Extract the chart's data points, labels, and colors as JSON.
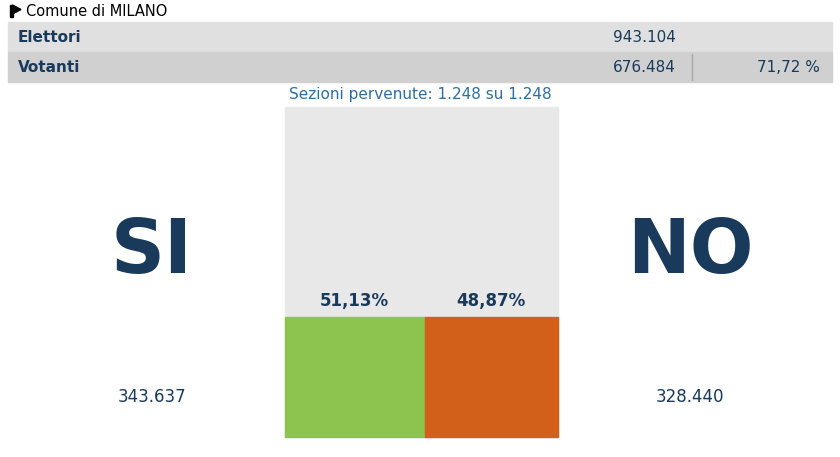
{
  "title": "Comune di MILANO",
  "elettori_label": "Elettori",
  "elettori_value": "943.104",
  "votanti_label": "Votanti",
  "votanti_value": "676.484",
  "votanti_pct": "71,72 %",
  "sezioni_text": "Sezioni pervenute: 1.248 su 1.248",
  "si_label": "SI",
  "no_label": "NO",
  "si_pct": "51,13%",
  "no_pct": "48,87%",
  "si_votes": "343.637",
  "no_votes": "328.440",
  "si_value": 51.13,
  "no_value": 48.87,
  "bar_color_si": "#8dc44e",
  "bar_color_no": "#d2601a",
  "bg_color": "#ffffff",
  "header_color": "#1a3a5c",
  "sezioni_color": "#2e6da4",
  "bar_bg_color": "#e8e8e8",
  "table_row1_color": "#e0e0e0",
  "table_row2_color": "#d0d0d0",
  "divider_color": "#aaaaaa"
}
